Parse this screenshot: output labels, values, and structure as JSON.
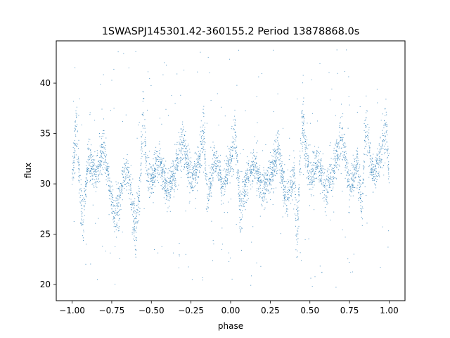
{
  "chart_data": {
    "type": "scatter",
    "title": "1SWASPJ145301.42-360155.2 Period 13878868.0s",
    "xlabel": "phase",
    "ylabel": "flux",
    "xlim": [
      -1.1,
      1.1
    ],
    "ylim": [
      18.4,
      44.2
    ],
    "x_ticks": [
      -1.0,
      -0.75,
      -0.5,
      -0.25,
      0.0,
      0.25,
      0.5,
      0.75,
      1.0
    ],
    "x_tick_labels": [
      "−1.00",
      "−0.75",
      "−0.50",
      "−0.25",
      "0.00",
      "0.25",
      "0.50",
      "0.75",
      "1.00"
    ],
    "y_ticks": [
      20,
      25,
      30,
      35,
      40
    ],
    "y_tick_labels": [
      "20",
      "25",
      "30",
      "35",
      "40"
    ],
    "grid": false,
    "legend": "none",
    "marker": "tiny dots",
    "color": "#1f77b4",
    "series": [
      {
        "phase_range": [
          -1.0,
          1.0
        ],
        "flux_center": 31.0,
        "flux_core_range": [
          27.0,
          35.0
        ],
        "flux_full_range": [
          19.7,
          43.3
        ],
        "points": [
          [
            -1.0,
            31.0
          ],
          [
            -0.97,
            37.5
          ],
          [
            -0.95,
            28.0
          ],
          [
            -0.93,
            24.0
          ],
          [
            -0.9,
            33.0
          ],
          [
            -0.85,
            30.5
          ],
          [
            -0.8,
            35.0
          ],
          [
            -0.75,
            27.0
          ],
          [
            -0.72,
            25.0
          ],
          [
            -0.68,
            30.0
          ],
          [
            -0.65,
            32.0
          ],
          [
            -0.6,
            22.5
          ],
          [
            -0.57,
            29.5
          ],
          [
            -0.55,
            40.5
          ],
          [
            -0.53,
            31.5
          ],
          [
            -0.5,
            30.0
          ],
          [
            -0.45,
            33.0
          ],
          [
            -0.4,
            28.5
          ],
          [
            -0.35,
            31.5
          ],
          [
            -0.3,
            36.0
          ],
          [
            -0.25,
            30.0
          ],
          [
            -0.2,
            32.5
          ],
          [
            -0.17,
            38.0
          ],
          [
            -0.15,
            27.5
          ],
          [
            -0.1,
            33.5
          ],
          [
            -0.05,
            29.5
          ],
          [
            0.0,
            33.0
          ],
          [
            0.03,
            37.0
          ],
          [
            0.06,
            25.5
          ],
          [
            0.1,
            30.0
          ],
          [
            0.15,
            32.5
          ],
          [
            0.2,
            28.5
          ],
          [
            0.25,
            30.5
          ],
          [
            0.3,
            34.5
          ],
          [
            0.35,
            27.5
          ],
          [
            0.4,
            31.0
          ],
          [
            0.42,
            22.0
          ],
          [
            0.45,
            38.5
          ],
          [
            0.5,
            30.0
          ],
          [
            0.55,
            33.0
          ],
          [
            0.6,
            28.5
          ],
          [
            0.65,
            31.5
          ],
          [
            0.7,
            36.5
          ],
          [
            0.75,
            29.0
          ],
          [
            0.8,
            32.5
          ],
          [
            0.83,
            26.0
          ],
          [
            0.85,
            38.0
          ],
          [
            0.9,
            30.5
          ],
          [
            0.95,
            34.0
          ],
          [
            0.98,
            37.5
          ],
          [
            1.0,
            31.0
          ]
        ]
      }
    ]
  }
}
